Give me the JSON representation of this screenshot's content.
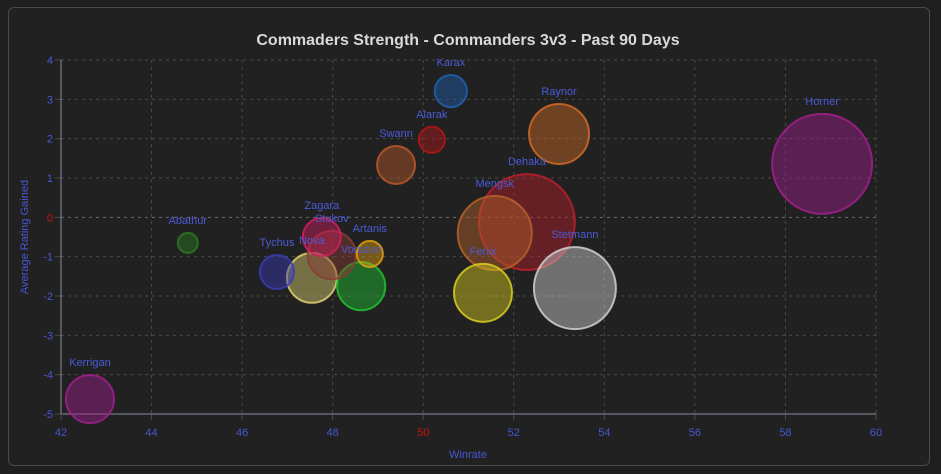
{
  "chart_data": {
    "type": "scatter",
    "subtype": "bubble",
    "title": "Commaders Strength - Commanders 3v3 - Past 90 Days",
    "xlabel": "Winrate",
    "ylabel": "Average Rating Gained",
    "xlim": [
      42,
      60
    ],
    "ylim": [
      -5,
      4
    ],
    "xticks": [
      "42",
      "44",
      "46",
      "48",
      "50",
      "52",
      "54",
      "56",
      "58",
      "60"
    ],
    "yticks": [
      "4",
      "3",
      "2",
      "1",
      "0",
      "-1",
      "-2",
      "-3",
      "-4",
      "-5"
    ],
    "highlight_x_tick": "50",
    "highlight_y_tick": "0",
    "grid": true,
    "legend": "none",
    "series": [
      {
        "name": "Horner",
        "x": 58.81,
        "y": 1.36,
        "size": 250,
        "color": "#a0208c"
      },
      {
        "name": "Dehaka",
        "x": 52.29,
        "y": -0.12,
        "size": 230,
        "color": "#b8202c"
      },
      {
        "name": "Stetmann",
        "x": 53.35,
        "y": -1.8,
        "size": 168,
        "color": "#d0d0d0"
      },
      {
        "name": "Mengsk",
        "x": 51.58,
        "y": -0.4,
        "size": 137,
        "color": "#b5622a"
      },
      {
        "name": "Raynor",
        "x": 53.0,
        "y": 2.12,
        "size": 90,
        "color": "#d06a28"
      },
      {
        "name": "Fenix",
        "x": 51.32,
        "y": -1.92,
        "size": 84,
        "color": "#d8cc20"
      },
      {
        "name": "Nova",
        "x": 47.54,
        "y": -1.54,
        "size": 62,
        "color": "#ddd070"
      },
      {
        "name": "Vorazun",
        "x": 48.63,
        "y": -1.75,
        "size": 58,
        "color": "#22c030"
      },
      {
        "name": "Stukov",
        "x": 47.98,
        "y": -0.96,
        "size": 58,
        "color": "#8a3c34"
      },
      {
        "name": "Kerrigan",
        "x": 42.64,
        "y": -4.62,
        "size": 58,
        "color": "#a0208c"
      },
      {
        "name": "Zagara",
        "x": 47.76,
        "y": -0.5,
        "size": 36,
        "color": "#d02060"
      },
      {
        "name": "Swann",
        "x": 49.4,
        "y": 1.33,
        "size": 36,
        "color": "#b8582a"
      },
      {
        "name": "Tychus",
        "x": 46.77,
        "y": -1.39,
        "size": 29,
        "color": "#3a3ab8"
      },
      {
        "name": "Karax",
        "x": 50.61,
        "y": 3.21,
        "size": 26,
        "color": "#2060b0"
      },
      {
        "name": "Alarak",
        "x": 50.19,
        "y": 1.97,
        "size": 17,
        "color": "#b01818"
      },
      {
        "name": "Artanis",
        "x": 48.82,
        "y": -0.93,
        "size": 17,
        "color": "#e0a010"
      },
      {
        "name": "Abathur",
        "x": 44.8,
        "y": -0.65,
        "size": 10,
        "color": "#2a7a20"
      }
    ]
  },
  "colors": {
    "tick": "#4757d4",
    "highlight": "#cc1111",
    "grid": "#4a4a4a",
    "axis": "#8a8aa0"
  }
}
